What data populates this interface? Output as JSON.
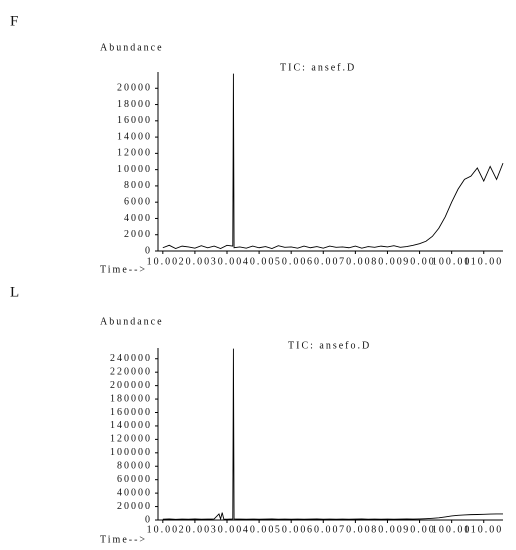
{
  "chart_data": [
    {
      "type": "line",
      "panel_label": "F",
      "title": "TIC: ansef.D",
      "y_label": "Abundance",
      "x_label": "Time-->",
      "xlim": [
        8.5,
        116
      ],
      "ylim": [
        0,
        22000
      ],
      "xticks": [
        {
          "value": 10,
          "label": "10.00"
        },
        {
          "value": 20,
          "label": "20.00"
        },
        {
          "value": 30,
          "label": "30.00"
        },
        {
          "value": 40,
          "label": "40.00"
        },
        {
          "value": 50,
          "label": "50.00"
        },
        {
          "value": 60,
          "label": "60.00"
        },
        {
          "value": 70,
          "label": "70.00"
        },
        {
          "value": 80,
          "label": "80.00"
        },
        {
          "value": 90,
          "label": "90.00"
        },
        {
          "value": 100,
          "label": "100.00"
        },
        {
          "value": 110,
          "label": "110.00"
        }
      ],
      "yticks": [
        0,
        2000,
        4000,
        6000,
        8000,
        10000,
        12000,
        14000,
        16000,
        18000,
        20000
      ],
      "color": "#000000",
      "x": [
        10,
        12,
        14,
        16,
        18,
        20,
        22,
        24,
        26,
        28,
        30,
        31.8,
        32,
        32.2,
        34,
        36,
        38,
        40,
        42,
        44,
        46,
        48,
        50,
        52,
        54,
        56,
        58,
        60,
        62,
        64,
        66,
        68,
        70,
        72,
        74,
        76,
        78,
        80,
        82,
        84,
        86,
        88,
        90,
        92,
        94,
        96,
        98,
        100,
        102,
        104,
        106,
        108,
        110,
        112,
        114,
        116
      ],
      "values": [
        400,
        700,
        300,
        600,
        500,
        350,
        650,
        400,
        600,
        300,
        700,
        600,
        21800,
        400,
        500,
        350,
        600,
        400,
        550,
        300,
        650,
        450,
        500,
        350,
        600,
        400,
        550,
        350,
        600,
        450,
        500,
        400,
        600,
        350,
        550,
        450,
        600,
        500,
        650,
        450,
        550,
        700,
        900,
        1200,
        1800,
        2800,
        4200,
        6000,
        7600,
        8800,
        9200,
        10200,
        8600,
        10400,
        8800,
        10800
      ]
    },
    {
      "type": "line",
      "panel_label": "L",
      "title": "TIC: ansefo.D",
      "y_label": "Abundance",
      "x_label": "Time-->",
      "xlim": [
        8.5,
        116
      ],
      "ylim": [
        0,
        256000
      ],
      "xticks": [
        {
          "value": 10,
          "label": "10.00"
        },
        {
          "value": 20,
          "label": "20.00"
        },
        {
          "value": 30,
          "label": "30.00"
        },
        {
          "value": 40,
          "label": "40.00"
        },
        {
          "value": 50,
          "label": "50.00"
        },
        {
          "value": 60,
          "label": "60.00"
        },
        {
          "value": 70,
          "label": "70.00"
        },
        {
          "value": 80,
          "label": "80.00"
        },
        {
          "value": 90,
          "label": "90.00"
        },
        {
          "value": 100,
          "label": "100.00"
        },
        {
          "value": 110,
          "label": "110.00"
        }
      ],
      "yticks": [
        0,
        20000,
        40000,
        60000,
        80000,
        100000,
        120000,
        140000,
        160000,
        180000,
        200000,
        220000,
        240000
      ],
      "color": "#000000",
      "x": [
        10,
        12,
        14,
        16,
        18,
        20,
        22,
        24,
        26,
        27.5,
        28,
        28.5,
        29,
        30,
        31.8,
        32,
        32.2,
        34,
        36,
        38,
        40,
        42,
        44,
        46,
        48,
        50,
        52,
        54,
        56,
        58,
        60,
        62,
        64,
        66,
        68,
        70,
        72,
        74,
        76,
        78,
        80,
        82,
        84,
        86,
        88,
        90,
        92,
        94,
        96,
        98,
        100,
        102,
        104,
        106,
        108,
        110,
        112,
        114,
        116
      ],
      "values": [
        1200,
        1500,
        1000,
        1400,
        1200,
        1600,
        1100,
        1300,
        1500,
        9000,
        1500,
        11000,
        1400,
        1200,
        1500,
        255000,
        1500,
        1300,
        1100,
        1400,
        1200,
        1300,
        1500,
        1200,
        1300,
        1100,
        1400,
        1200,
        1300,
        1500,
        1200,
        1300,
        1100,
        1400,
        1200,
        1300,
        1500,
        1200,
        1300,
        1100,
        1400,
        1200,
        1300,
        1500,
        1400,
        1600,
        2000,
        2500,
        3200,
        4500,
        6000,
        7000,
        7500,
        8000,
        8200,
        8500,
        8800,
        9000,
        9000
      ]
    }
  ]
}
